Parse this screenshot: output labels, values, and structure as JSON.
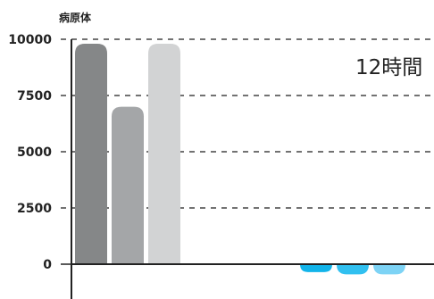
{
  "chart_data": {
    "type": "bar",
    "ylabel": "病原体",
    "ylim": [
      0,
      10000
    ],
    "yticks": [
      0,
      2500,
      5000,
      7500,
      10000
    ],
    "grid": "dashed-horizontal",
    "annotation": "12時間",
    "groups": [
      {
        "values": [
          9800,
          7000,
          9800
        ],
        "colors": [
          "#858788",
          "#a4a6a8",
          "#d2d3d4"
        ]
      },
      {
        "values": [
          -350,
          -450,
          -450
        ],
        "colors": [
          "#12b4ea",
          "#31c0f0",
          "#7dd3f5"
        ]
      }
    ]
  }
}
